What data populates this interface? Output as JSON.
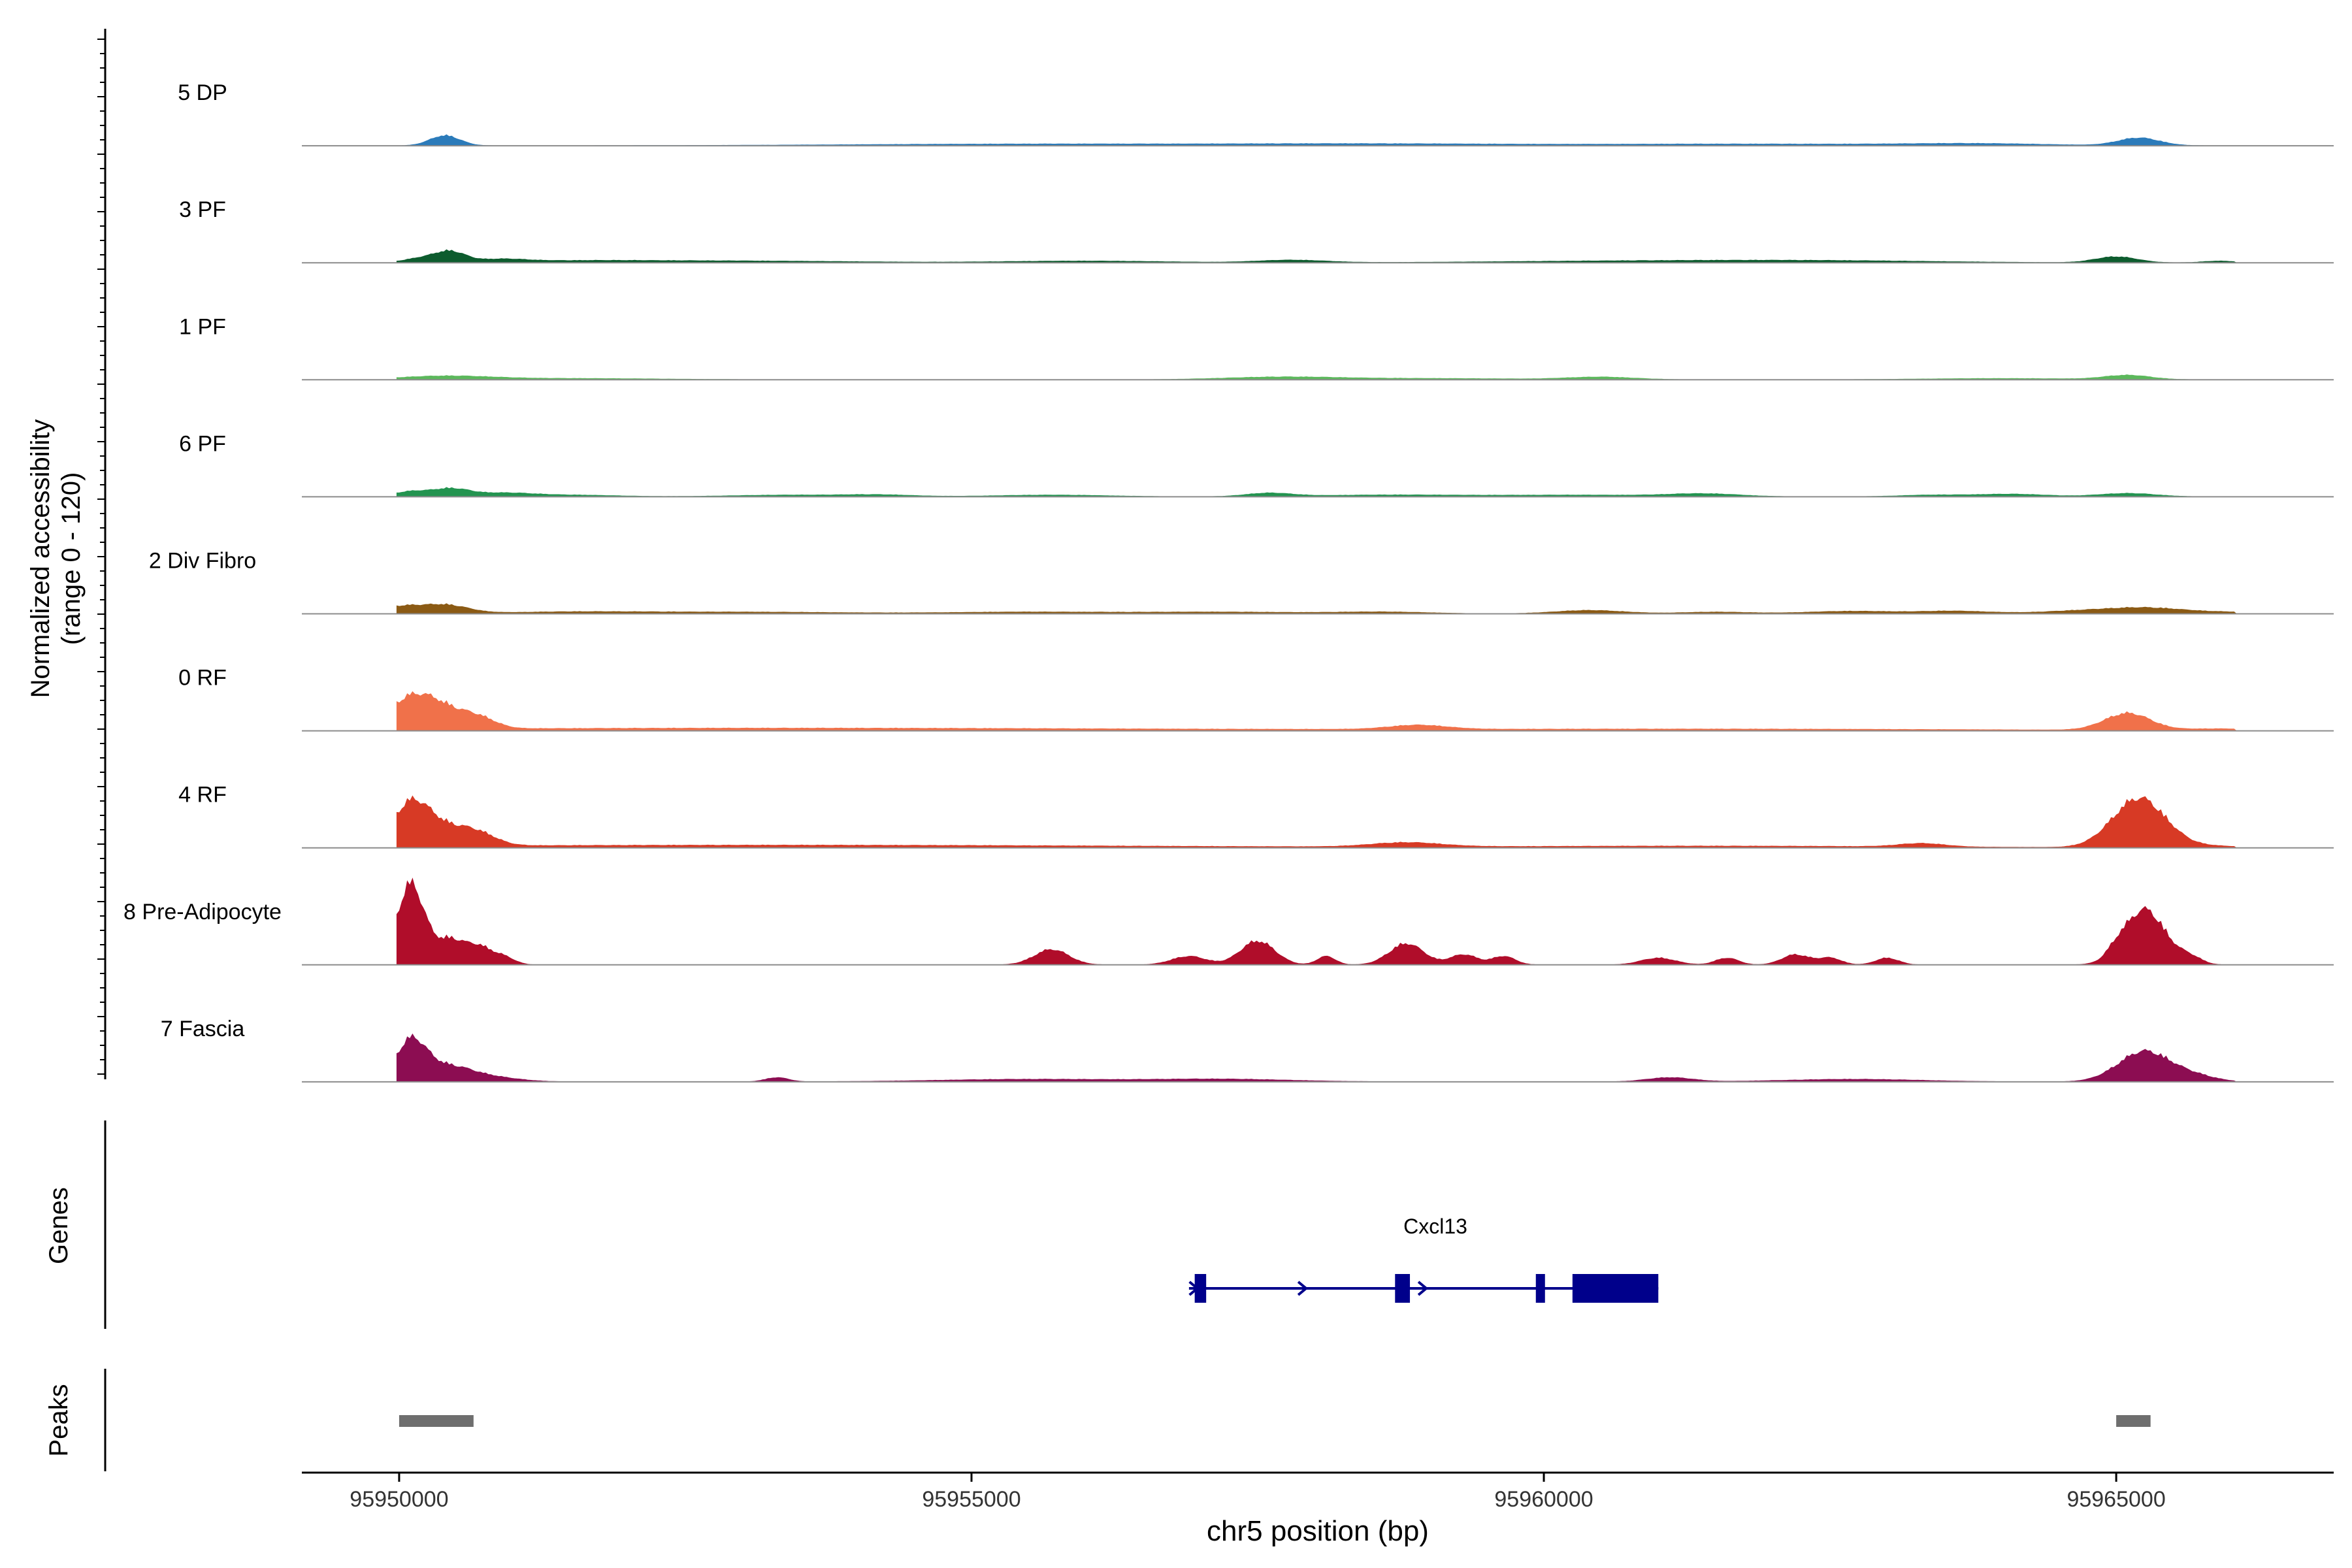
{
  "chart_data": {
    "type": "area",
    "region": "chr5",
    "x_axis": {
      "label": "chr5 position (bp)",
      "ticks": [
        95950000,
        95955000,
        95960000,
        95965000
      ],
      "tick_labels": [
        "95950000",
        "95955000",
        "95960000",
        "95965000"
      ],
      "range": [
        95949150,
        95966900
      ]
    },
    "y_axis": {
      "label_line1": "Normalized accessibility",
      "label_line2": "(range 0 - 120)",
      "range": [
        0,
        120
      ]
    },
    "colors": {
      "5 DP": "#2b7bba",
      "3 PF": "#0d5c2e",
      "1 PF": "#5cb85c",
      "6 PF": "#239450",
      "2 Div Fibro": "#8b5a14",
      "0 RF": "#f0714a",
      "4 RF": "#d73a25",
      "8 Pre-Adipocyte": "#b00d2a",
      "7 Fascia": "#8c0d52",
      "gene": "#00008b",
      "peak": "#6e6e6e",
      "baseline": "#8c8c8c",
      "axis": "#000000"
    },
    "series": [
      {
        "name": "5 DP",
        "peaks": [
          [
            95950400,
            12,
            130
          ],
          [
            95955500,
            2,
            1600
          ],
          [
            95958500,
            2,
            1200
          ],
          [
            95961800,
            2,
            1400
          ],
          [
            95963800,
            2,
            600
          ],
          [
            95965200,
            9,
            180
          ]
        ]
      },
      {
        "name": "3 PF",
        "peaks": [
          [
            95950200,
            5,
            150
          ],
          [
            95950450,
            12,
            130
          ],
          [
            95950900,
            3,
            200
          ],
          [
            95951500,
            2,
            700
          ],
          [
            95953000,
            2,
            1000
          ],
          [
            95956000,
            2,
            700
          ],
          [
            95957800,
            3,
            300
          ],
          [
            95960800,
            2,
            1200
          ],
          [
            95962500,
            2,
            1000
          ],
          [
            95965000,
            7,
            180
          ],
          [
            95965900,
            2,
            140
          ]
        ]
      },
      {
        "name": "1 PF",
        "peaks": [
          [
            95950400,
            4,
            400
          ],
          [
            95951500,
            1.5,
            800
          ],
          [
            95957700,
            3,
            500
          ],
          [
            95959000,
            1.5,
            800
          ],
          [
            95960500,
            3,
            300
          ],
          [
            95964000,
            1.5,
            700
          ],
          [
            95965100,
            5,
            200
          ]
        ]
      },
      {
        "name": "6 PF",
        "peaks": [
          [
            95950100,
            6,
            150
          ],
          [
            95950450,
            9,
            160
          ],
          [
            95950900,
            4,
            250
          ],
          [
            95951500,
            2,
            400
          ],
          [
            95953400,
            2,
            500
          ],
          [
            95954200,
            2,
            300
          ],
          [
            95955700,
            2,
            500
          ],
          [
            95957600,
            4,
            200
          ],
          [
            95958600,
            2,
            600
          ],
          [
            95960300,
            2,
            800
          ],
          [
            95961400,
            3,
            300
          ],
          [
            95963400,
            2,
            300
          ],
          [
            95964100,
            3,
            300
          ],
          [
            95965100,
            4,
            250
          ]
        ]
      },
      {
        "name": "2 Div Fibro",
        "peaks": [
          [
            95950000,
            8,
            180
          ],
          [
            95950400,
            10,
            200
          ],
          [
            95951500,
            2,
            600
          ],
          [
            95953000,
            2,
            900
          ],
          [
            95955500,
            2,
            700
          ],
          [
            95957200,
            2,
            700
          ],
          [
            95958600,
            2,
            400
          ],
          [
            95960400,
            4,
            300
          ],
          [
            95961500,
            2,
            300
          ],
          [
            95962700,
            3,
            400
          ],
          [
            95963600,
            3,
            300
          ],
          [
            95964800,
            4,
            400
          ],
          [
            95965300,
            5,
            300
          ],
          [
            95966000,
            2,
            400
          ]
        ]
      },
      {
        "name": "0 RF",
        "peaks": [
          [
            95950100,
            36,
            200
          ],
          [
            95950400,
            18,
            180
          ],
          [
            95950700,
            12,
            150
          ],
          [
            95951500,
            2,
            2500
          ],
          [
            95955000,
            2,
            2500
          ],
          [
            95958900,
            5,
            250
          ],
          [
            95961500,
            2,
            2500
          ],
          [
            95965100,
            20,
            200
          ],
          [
            95965900,
            2,
            300
          ]
        ]
      },
      {
        "name": "4 RF",
        "peaks": [
          [
            95950100,
            48,
            160
          ],
          [
            95950400,
            20,
            200
          ],
          [
            95950700,
            12,
            160
          ],
          [
            95951500,
            2,
            2500
          ],
          [
            95955000,
            2,
            2500
          ],
          [
            95958800,
            5,
            300
          ],
          [
            95961500,
            2,
            1800
          ],
          [
            95963300,
            4,
            200
          ],
          [
            95965200,
            58,
            230
          ],
          [
            95965800,
            2,
            300
          ]
        ]
      },
      {
        "name": "8 Pre-Adipocyte",
        "peaks": [
          [
            95950100,
            95,
            120
          ],
          [
            95950450,
            30,
            130
          ],
          [
            95950700,
            18,
            100
          ],
          [
            95950900,
            10,
            100
          ],
          [
            95955700,
            18,
            150
          ],
          [
            95956900,
            10,
            150
          ],
          [
            95957500,
            28,
            150
          ],
          [
            95958100,
            10,
            80
          ],
          [
            95958800,
            25,
            150
          ],
          [
            95959300,
            12,
            120
          ],
          [
            95959650,
            10,
            100
          ],
          [
            95961000,
            8,
            150
          ],
          [
            95961600,
            8,
            100
          ],
          [
            95962200,
            12,
            120
          ],
          [
            95962500,
            8,
            100
          ],
          [
            95963000,
            8,
            100
          ],
          [
            95965000,
            8,
            80
          ],
          [
            95965250,
            65,
            180
          ],
          [
            95965650,
            8,
            100
          ]
        ]
      },
      {
        "name": "7 Fascia",
        "peaks": [
          [
            95950100,
            45,
            130
          ],
          [
            95950400,
            18,
            220
          ],
          [
            95950800,
            5,
            250
          ],
          [
            95953300,
            5,
            100
          ],
          [
            95955500,
            3,
            800
          ],
          [
            95957200,
            3,
            600
          ],
          [
            95961100,
            5,
            200
          ],
          [
            95962700,
            3,
            600
          ],
          [
            95965250,
            36,
            230
          ],
          [
            95965700,
            6,
            180
          ]
        ]
      }
    ],
    "genes": [
      {
        "name": "Cxcl13",
        "strand": "+",
        "line_start": 95956900,
        "line_end": 95961000,
        "exons": [
          [
            95956950,
            95957050,
            "thin"
          ],
          [
            95958700,
            95958830,
            "thin"
          ],
          [
            95959930,
            95960000,
            "thin"
          ],
          [
            95960250,
            95961000,
            "thick"
          ]
        ],
        "arrows": [
          95956950,
          95957900,
          95958950
        ]
      }
    ],
    "peaks_track": [
      [
        95950000,
        95950650
      ],
      [
        95965000,
        95965300
      ]
    ],
    "track_labels": {
      "genes": "Genes",
      "peaks": "Peaks"
    }
  }
}
